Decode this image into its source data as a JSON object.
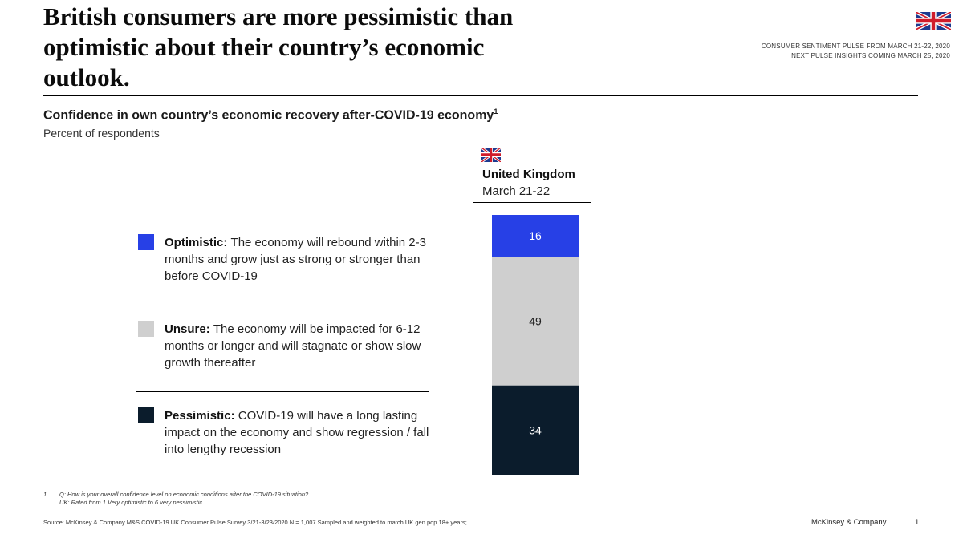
{
  "title": "British consumers are more pessimistic than\noptimistic about their country’s economic\noutlook.",
  "pulse": {
    "line1": "CONSUMER SENTIMENT PULSE FROM MARCH 21-22, 2020",
    "line2": "NEXT PULSE INSIGHTS COMING MARCH 25, 2020"
  },
  "chart_title": "Confidence in own country’s economic recovery after-COVID-19 economy",
  "chart_title_sup": "1",
  "chart_subtitle": "Percent of respondents",
  "column": {
    "country": "United Kingdom",
    "date": "March 21-22"
  },
  "legend": [
    {
      "label": "Optimistic",
      "text": "The economy will rebound within 2-3 months and grow just as strong or stronger than before COVID-19"
    },
    {
      "label": "Unsure",
      "text": "The economy will be impacted for 6-12 months or longer and will stagnate or show slow growth thereafter"
    },
    {
      "label": "Pessimistic",
      "text": "COVID-19 will have a long lasting impact on the economy and show regression / fall into lengthy recession"
    }
  ],
  "footnote": {
    "number": "1.",
    "line1": "Q: How is your overall confidence level on economic conditions after the COVID-19 situation?",
    "line2": "UK: Rated from 1 Very optimistic to 6 very pessimistic"
  },
  "source": "Source: McKinsey & Company M&S COVID-19 UK Consumer Pulse Survey 3/21-3/23/2020 N = 1,007 Sampled and weighted to match UK gen pop 18+ years;",
  "brand": "McKinsey & Company",
  "page_number": "1",
  "colors": {
    "optimistic": "#2740e6",
    "unsure": "#cfcfcf",
    "pessimistic": "#0b1c2c",
    "flag_blue": "#1d3a8f",
    "flag_red": "#d01c2b"
  },
  "chart_data": {
    "type": "bar",
    "stacked": true,
    "title": "Confidence in own country’s economic recovery after-COVID-19 economy",
    "ylabel": "Percent of respondents",
    "categories": [
      "United Kingdom – March 21-22"
    ],
    "series": [
      {
        "name": "Optimistic",
        "values": [
          16
        ],
        "color": "#2740e6"
      },
      {
        "name": "Unsure",
        "values": [
          49
        ],
        "color": "#cfcfcf"
      },
      {
        "name": "Pessimistic",
        "values": [
          34
        ],
        "color": "#0b1c2c"
      }
    ],
    "ylim": [
      0,
      99
    ]
  }
}
